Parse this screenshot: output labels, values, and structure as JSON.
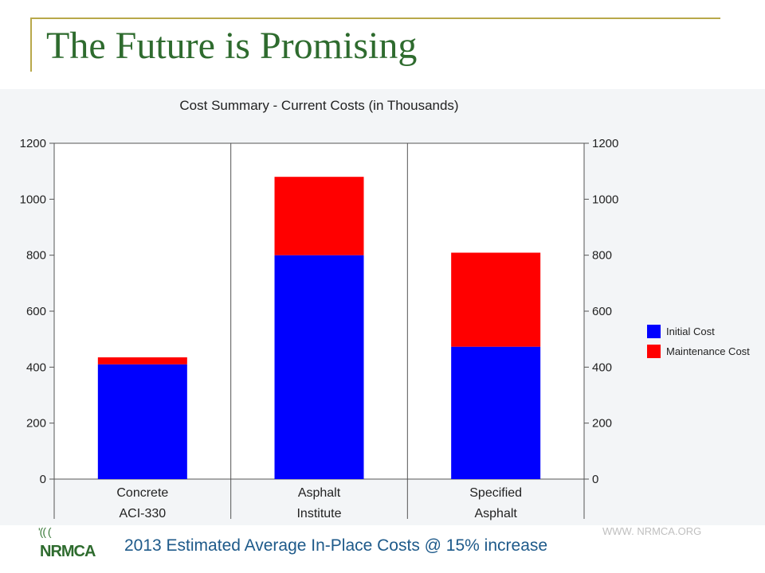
{
  "slide": {
    "title": "The Future is Promising",
    "footer_caption": "2013 Estimated Average In-Place Costs @ 15% increase",
    "footer_url": "WWW. NRMCA.ORG",
    "logo_text": "NRMCA",
    "logo_waves": "'(( ("
  },
  "chart_data": {
    "type": "bar",
    "stacked": true,
    "title": "Cost Summary - Current Costs (in Thousands)",
    "categories": [
      [
        "Concrete",
        "ACI-330"
      ],
      [
        "Asphalt",
        "Institute"
      ],
      [
        "Specified",
        "Asphalt"
      ]
    ],
    "series": [
      {
        "name": "Initial Cost",
        "color": "#0000ff",
        "values": [
          410,
          800,
          473
        ]
      },
      {
        "name": "Maintenance Cost",
        "color": "#ff0000",
        "values": [
          25,
          280,
          336
        ]
      }
    ],
    "ylim": [
      0,
      1200
    ],
    "yticks": [
      0,
      200,
      400,
      600,
      800,
      1000,
      1200
    ],
    "left_axis": true,
    "right_axis": true,
    "grid": "vertical category separators",
    "legend_position": "right"
  }
}
